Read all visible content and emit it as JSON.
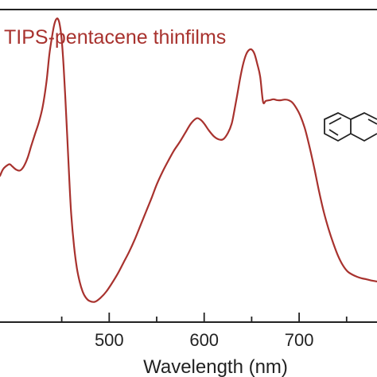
{
  "chart_data": {
    "type": "line",
    "title": "TIPS-pentacene thinfilms",
    "xlabel": "Wavelength (nm)",
    "ylabel": "",
    "x_ticks": [
      500,
      600,
      700
    ],
    "x_minor_ticks": [
      450,
      550,
      650,
      750
    ],
    "xlim": [
      385,
      782
    ],
    "ylim": [
      0,
      1
    ],
    "grid": false,
    "line_color": "#a8322e",
    "axis_color": "#222222",
    "series": [
      {
        "x": [
          385,
          388,
          391,
          395,
          398,
          402,
          406,
          410,
          414,
          418,
          422,
          426,
          430,
          434,
          437,
          440,
          442,
          444,
          446,
          448,
          450,
          452,
          454,
          456,
          458,
          460,
          463,
          466,
          469,
          472,
          475,
          479,
          485,
          491,
          497,
          503,
          509,
          515,
          521,
          527,
          533,
          539,
          545,
          550,
          556,
          562,
          568,
          574,
          580,
          586,
          592,
          596,
          600,
          605,
          610,
          615,
          620,
          625,
          629,
          632,
          635,
          638,
          641,
          644,
          647,
          650,
          653,
          656,
          659,
          662,
          665,
          669,
          673,
          677,
          681,
          685,
          689,
          693,
          697,
          701,
          706,
          711,
          716,
          721,
          726,
          731,
          736,
          741,
          746,
          751,
          756,
          761,
          766,
          771,
          776,
          782
        ],
        "y": [
          0.468,
          0.488,
          0.498,
          0.505,
          0.498,
          0.488,
          0.485,
          0.498,
          0.525,
          0.565,
          0.603,
          0.64,
          0.69,
          0.77,
          0.857,
          0.917,
          0.95,
          0.968,
          0.97,
          0.95,
          0.902,
          0.818,
          0.705,
          0.582,
          0.455,
          0.345,
          0.242,
          0.172,
          0.128,
          0.098,
          0.08,
          0.068,
          0.065,
          0.078,
          0.098,
          0.125,
          0.155,
          0.19,
          0.225,
          0.265,
          0.31,
          0.355,
          0.4,
          0.44,
          0.48,
          0.515,
          0.548,
          0.575,
          0.605,
          0.635,
          0.652,
          0.648,
          0.635,
          0.613,
          0.595,
          0.585,
          0.585,
          0.605,
          0.635,
          0.68,
          0.73,
          0.782,
          0.825,
          0.855,
          0.87,
          0.872,
          0.858,
          0.825,
          0.785,
          0.705,
          0.708,
          0.71,
          0.713,
          0.71,
          0.71,
          0.712,
          0.71,
          0.702,
          0.685,
          0.662,
          0.62,
          0.56,
          0.492,
          0.418,
          0.352,
          0.298,
          0.252,
          0.212,
          0.182,
          0.162,
          0.152,
          0.145,
          0.14,
          0.137,
          0.133,
          0.13
        ]
      }
    ]
  }
}
